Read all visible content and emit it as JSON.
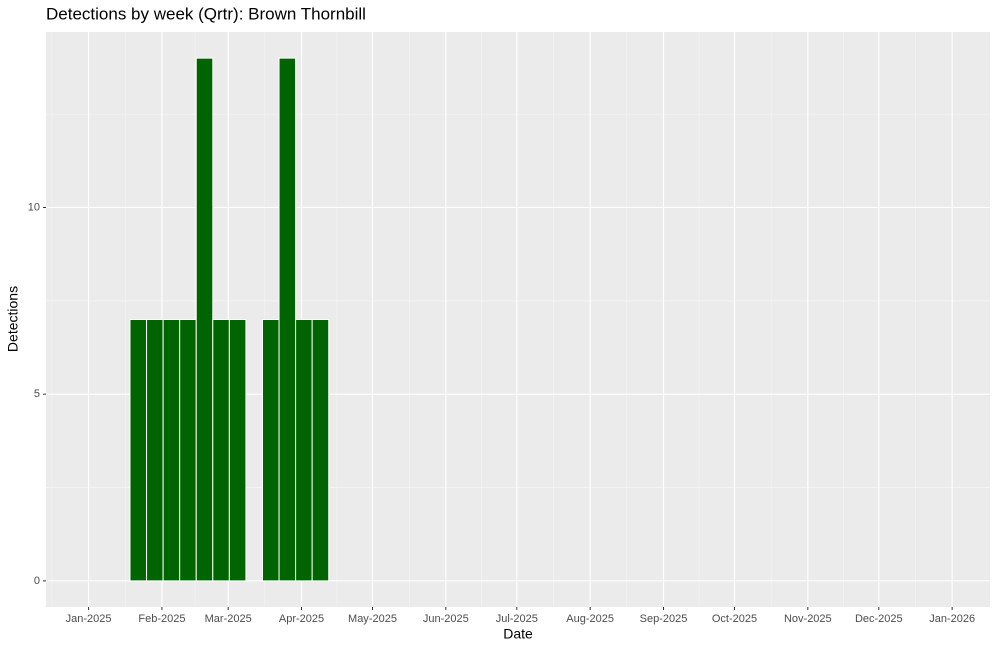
{
  "chart_data": {
    "type": "bar",
    "title": "Detections by week (Qrtr): Brown Thornbill",
    "x_label": "Date",
    "y_label": "Detections",
    "x": [
      "2025-01-22",
      "2025-01-29",
      "2025-02-05",
      "2025-02-12",
      "2025-02-19",
      "2025-02-26",
      "2025-03-05",
      "2025-03-19",
      "2025-03-26",
      "2025-04-02",
      "2025-04-09"
    ],
    "values": [
      7,
      7,
      7,
      7,
      14,
      7,
      7,
      7,
      14,
      7,
      7
    ],
    "color": "#006400",
    "xlim": [
      "2024-12-14",
      "2026-01-17"
    ],
    "xticks": [
      {
        "value": "2025-01-01",
        "label": "Jan-2025"
      },
      {
        "value": "2025-02-01",
        "label": "Feb-2025"
      },
      {
        "value": "2025-03-01",
        "label": "Mar-2025"
      },
      {
        "value": "2025-04-01",
        "label": "Apr-2025"
      },
      {
        "value": "2025-05-01",
        "label": "May-2025"
      },
      {
        "value": "2025-06-01",
        "label": "Jun-2025"
      },
      {
        "value": "2025-07-01",
        "label": "Jul-2025"
      },
      {
        "value": "2025-08-01",
        "label": "Aug-2025"
      },
      {
        "value": "2025-09-01",
        "label": "Sep-2025"
      },
      {
        "value": "2025-10-01",
        "label": "Oct-2025"
      },
      {
        "value": "2025-11-01",
        "label": "Nov-2025"
      },
      {
        "value": "2025-12-01",
        "label": "Dec-2025"
      },
      {
        "value": "2026-01-01",
        "label": "Jan-2026"
      }
    ],
    "ylim": [
      -0.7,
      14.7
    ],
    "yticks": [
      0,
      5,
      10
    ],
    "grid": true
  }
}
